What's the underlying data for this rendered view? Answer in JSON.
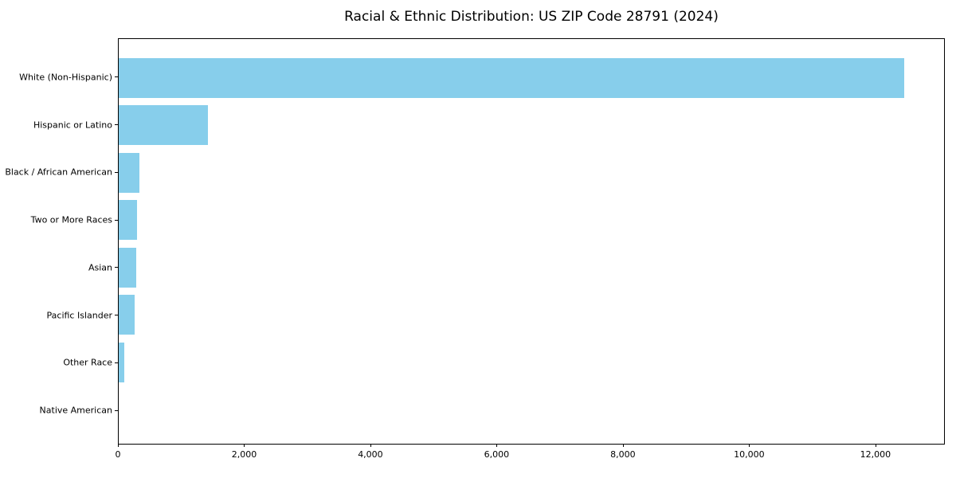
{
  "chart_data": {
    "type": "bar",
    "orientation": "horizontal",
    "title": "Racial & Ethnic Distribution: US ZIP Code 28791 (2024)",
    "categories": [
      "White (Non-Hispanic)",
      "Hispanic or Latino",
      "Black / African American",
      "Two or More Races",
      "Asian",
      "Pacific Islander",
      "Other Race",
      "Native American"
    ],
    "values": [
      12470,
      1410,
      330,
      290,
      283,
      255,
      90,
      0
    ],
    "xlim": [
      0,
      13100
    ],
    "x_ticks": [
      0,
      2000,
      4000,
      6000,
      8000,
      10000,
      12000
    ],
    "x_tick_labels": [
      "0",
      "2,000",
      "4,000",
      "6,000",
      "8,000",
      "10,000",
      "12,000"
    ],
    "bar_color": "#87CEEB",
    "grid": false,
    "legend_position": "none",
    "xlabel": "",
    "ylabel": ""
  }
}
